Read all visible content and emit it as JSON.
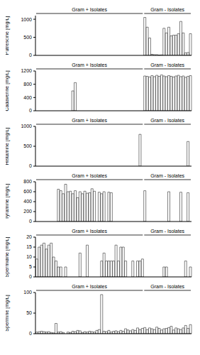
{
  "chart_data": [
    {
      "type": "bar",
      "y_label": "Putrescine [mg/L]",
      "color": "#ffffff",
      "grid": false,
      "tick_labels": "y",
      "groups": [
        {
          "label": "Gram + Isolates",
          "start": 0,
          "end": 44
        },
        {
          "label": "Gram - Isolates",
          "start": 45,
          "end": 64
        }
      ],
      "categories": [
        null,
        null,
        null,
        null,
        null,
        null,
        null,
        null,
        null,
        null,
        null,
        null,
        null,
        null,
        null,
        null,
        null,
        null,
        null,
        null,
        null,
        null,
        null,
        null,
        null,
        null,
        null,
        null,
        null,
        null,
        null,
        null,
        null,
        null,
        null,
        null,
        null,
        null,
        null,
        null,
        null,
        null,
        null,
        null,
        null,
        null,
        null,
        null,
        null,
        null,
        null,
        null,
        null,
        null,
        null,
        null,
        null,
        null,
        null,
        null,
        null,
        null,
        null,
        null,
        null
      ],
      "values": [
        0,
        0,
        0,
        0,
        0,
        0,
        0,
        0,
        0,
        0,
        0,
        0,
        0,
        0,
        0,
        0,
        0,
        0,
        0,
        0,
        0,
        0,
        0,
        0,
        0,
        0,
        0,
        0,
        0,
        0,
        0,
        0,
        0,
        0,
        0,
        0,
        0,
        0,
        0,
        0,
        0,
        0,
        0,
        0,
        0,
        1050,
        780,
        480,
        30,
        20,
        20,
        10,
        15,
        750,
        620,
        780,
        540,
        560,
        560,
        600,
        940,
        620,
        70,
        80,
        600
      ],
      "ylim": [
        0,
        1100
      ],
      "yticks": [
        0,
        500,
        1000
      ]
    },
    {
      "type": "bar",
      "y_label": "Cadaverine [mg/L]",
      "color": "#ffffff",
      "grid": false,
      "tick_labels": "y",
      "groups": [
        {
          "label": "Gram + Isolates",
          "start": 0,
          "end": 44
        },
        {
          "label": "Gram - Isolates",
          "start": 45,
          "end": 64
        }
      ],
      "categories": [
        null,
        null,
        null,
        null,
        null,
        null,
        null,
        null,
        null,
        null,
        null,
        null,
        null,
        null,
        null,
        null,
        null,
        null,
        null,
        null,
        null,
        null,
        null,
        null,
        null,
        null,
        null,
        null,
        null,
        null,
        null,
        null,
        null,
        null,
        null,
        null,
        null,
        null,
        null,
        null,
        null,
        null,
        null,
        null,
        null,
        null,
        null,
        null,
        null,
        null,
        null,
        null,
        null,
        null,
        null,
        null,
        null,
        null,
        null,
        null,
        null,
        null,
        null,
        null,
        null
      ],
      "values": [
        0,
        0,
        0,
        0,
        0,
        0,
        0,
        0,
        0,
        0,
        0,
        0,
        0,
        0,
        0,
        600,
        850,
        0,
        0,
        0,
        0,
        0,
        0,
        0,
        0,
        0,
        0,
        0,
        0,
        0,
        0,
        0,
        0,
        0,
        0,
        0,
        0,
        0,
        0,
        0,
        0,
        0,
        0,
        0,
        0,
        1050,
        1040,
        1020,
        1060,
        1030,
        1070,
        1040,
        1080,
        1050,
        1030,
        1060,
        1040,
        1020,
        1050,
        1070,
        1030,
        1050,
        1010,
        1040,
        1060
      ],
      "ylim": [
        0,
        1200
      ],
      "yticks": [
        0,
        400,
        800,
        1200
      ]
    },
    {
      "type": "bar",
      "y_label": "Histamine [mg/L]",
      "color": "#ffffff",
      "grid": false,
      "tick_labels": "y",
      "groups": [
        {
          "label": "Gram + Isolates",
          "start": 0,
          "end": 44
        },
        {
          "label": "Gram - Isolates",
          "start": 45,
          "end": 64
        }
      ],
      "categories": [
        null,
        null,
        null,
        null,
        null,
        null,
        null,
        null,
        null,
        null,
        null,
        null,
        null,
        null,
        null,
        null,
        null,
        null,
        null,
        null,
        null,
        null,
        null,
        null,
        null,
        null,
        null,
        null,
        null,
        null,
        null,
        null,
        null,
        null,
        null,
        null,
        null,
        null,
        null,
        null,
        null,
        null,
        null,
        null,
        null,
        null,
        null,
        null,
        null,
        null,
        null,
        null,
        null,
        null,
        null,
        null,
        null,
        null,
        null,
        null,
        null,
        null,
        null,
        null,
        null
      ],
      "values": [
        0,
        0,
        0,
        0,
        0,
        0,
        0,
        0,
        0,
        0,
        0,
        0,
        0,
        0,
        0,
        0,
        0,
        0,
        0,
        0,
        0,
        0,
        0,
        0,
        0,
        0,
        0,
        0,
        0,
        0,
        0,
        0,
        0,
        0,
        0,
        0,
        0,
        0,
        0,
        0,
        0,
        0,
        0,
        800,
        0,
        0,
        0,
        0,
        0,
        0,
        0,
        0,
        0,
        0,
        0,
        0,
        0,
        0,
        0,
        0,
        0,
        0,
        0,
        620,
        0
      ],
      "ylim": [
        0,
        1000
      ],
      "yticks": [
        0,
        500,
        1000
      ]
    },
    {
      "type": "bar",
      "y_label": "Tyramine [mg/L]",
      "color": "#ffffff",
      "grid": false,
      "tick_labels": "y",
      "groups": [
        {
          "label": "Gram + Isolates",
          "start": 0,
          "end": 44
        },
        {
          "label": "Gram - Isolates",
          "start": 45,
          "end": 64
        }
      ],
      "categories": [
        null,
        null,
        null,
        null,
        null,
        null,
        null,
        null,
        null,
        null,
        null,
        null,
        null,
        null,
        null,
        null,
        null,
        null,
        null,
        null,
        null,
        null,
        null,
        null,
        null,
        null,
        null,
        null,
        null,
        null,
        null,
        null,
        null,
        null,
        null,
        null,
        null,
        null,
        null,
        null,
        null,
        null,
        null,
        null,
        null,
        null,
        null,
        null,
        null,
        null,
        null,
        null,
        null,
        null,
        null,
        null,
        null,
        null,
        null,
        null,
        null,
        null,
        null,
        null,
        null
      ],
      "values": [
        0,
        0,
        0,
        0,
        0,
        0,
        0,
        0,
        0,
        650,
        620,
        560,
        750,
        600,
        610,
        560,
        620,
        480,
        600,
        560,
        610,
        570,
        580,
        660,
        610,
        0,
        590,
        560,
        600,
        0,
        590,
        580,
        0,
        0,
        0,
        0,
        0,
        0,
        0,
        0,
        0,
        0,
        0,
        0,
        0,
        620,
        0,
        0,
        0,
        0,
        0,
        0,
        0,
        0,
        0,
        600,
        0,
        0,
        0,
        0,
        590,
        0,
        0,
        580,
        0
      ],
      "ylim": [
        0,
        800
      ],
      "yticks": [
        0,
        200,
        400,
        600,
        800
      ]
    },
    {
      "type": "bar",
      "y_label": "Spermidine [mg/L]",
      "color": "#ffffff",
      "grid": false,
      "tick_labels": "y",
      "groups": [
        {
          "label": "Gram + Isolates",
          "start": 0,
          "end": 44
        },
        {
          "label": "Gram - Isolates",
          "start": 45,
          "end": 64
        }
      ],
      "categories": [
        null,
        null,
        null,
        null,
        null,
        null,
        null,
        null,
        null,
        null,
        null,
        null,
        null,
        null,
        null,
        null,
        null,
        null,
        null,
        null,
        null,
        null,
        null,
        null,
        null,
        null,
        null,
        null,
        null,
        null,
        null,
        null,
        null,
        null,
        null,
        null,
        null,
        null,
        null,
        null,
        null,
        null,
        null,
        null,
        null,
        null,
        null,
        null,
        null,
        null,
        null,
        null,
        null,
        null,
        null,
        null,
        null,
        null,
        null,
        null,
        null,
        null,
        null,
        null,
        null
      ],
      "values": [
        9,
        15,
        16,
        17,
        14,
        16,
        17,
        10,
        8,
        5,
        5,
        0,
        5,
        0,
        0,
        0,
        0,
        0,
        12,
        0,
        0,
        16,
        0,
        0,
        0,
        0,
        0,
        8,
        12,
        8,
        8,
        8,
        8,
        16,
        8,
        15,
        15,
        8,
        0,
        0,
        8,
        0,
        8,
        8,
        9,
        0,
        0,
        0,
        0,
        0,
        0,
        0,
        0,
        5,
        5,
        0,
        0,
        0,
        0,
        0,
        0,
        0,
        8,
        0,
        5
      ],
      "ylim": [
        0,
        20
      ],
      "yticks": [
        0,
        5,
        10,
        15,
        20
      ]
    },
    {
      "type": "bar",
      "y_label": "Spermine [mg/L]",
      "color": "#ffffff",
      "grid": false,
      "tick_labels": "y",
      "groups": [
        {
          "label": "Gram + Isolates",
          "start": 0,
          "end": 44
        },
        {
          "label": "Gram - Isolates",
          "start": 45,
          "end": 64
        }
      ],
      "categories": [
        null,
        null,
        null,
        null,
        null,
        null,
        null,
        null,
        null,
        null,
        null,
        null,
        null,
        null,
        null,
        null,
        null,
        null,
        null,
        null,
        null,
        null,
        null,
        null,
        null,
        null,
        null,
        null,
        null,
        null,
        null,
        null,
        null,
        null,
        null,
        null,
        null,
        null,
        null,
        null,
        null,
        null,
        null,
        null,
        null,
        null,
        null,
        null,
        null,
        null,
        null,
        null,
        null,
        null,
        null,
        null,
        null,
        null,
        null,
        null,
        null,
        null,
        null,
        null,
        null
      ],
      "values": [
        4,
        5,
        6,
        5,
        4,
        5,
        3,
        2,
        25,
        4,
        5,
        3,
        0,
        4,
        3,
        6,
        5,
        8,
        7,
        3,
        5,
        4,
        6,
        5,
        4,
        8,
        10,
        95,
        6,
        5,
        8,
        4,
        6,
        7,
        5,
        8,
        6,
        12,
        9,
        7,
        10,
        8,
        14,
        10,
        13,
        15,
        10,
        14,
        12,
        10,
        16,
        13,
        9,
        12,
        13,
        15,
        18,
        9,
        14,
        12,
        10,
        14,
        20,
        13,
        22
      ],
      "ylim": [
        0,
        100
      ],
      "yticks": [
        0,
        50,
        100
      ]
    }
  ]
}
